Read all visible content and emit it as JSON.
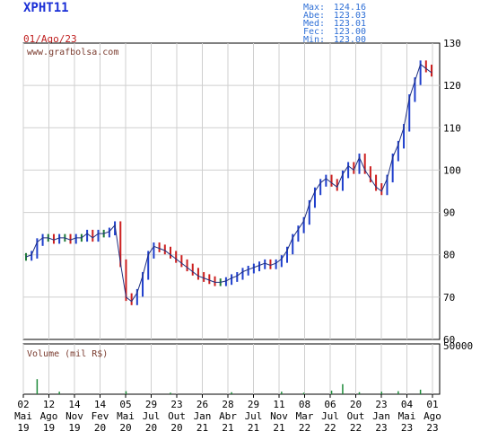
{
  "ticker": "XPHT11",
  "date": "01/Ago/23",
  "watermark": "www.grafbolsa.com",
  "stats": [
    {
      "label": "Max:",
      "value": "124.16"
    },
    {
      "label": "Abe:",
      "value": "123.03"
    },
    {
      "label": "Med:",
      "value": "123.01"
    },
    {
      "label": "Fec:",
      "value": "123.00"
    },
    {
      "label": "Min:",
      "value": "123.00"
    }
  ],
  "colors": {
    "up": "#1f3fcc",
    "down": "#cc1f1f",
    "neutral": "#1f7a3a",
    "grid": "#cfcfcf",
    "volume": "#1f8a3a"
  },
  "chart_data": {
    "type": "line",
    "ylim": [
      60,
      130
    ],
    "y_ticks": [
      60,
      70,
      80,
      90,
      100,
      110,
      120,
      130
    ],
    "volume_label": "Volume (mil R$)",
    "volume_ticks": [
      "50000"
    ],
    "volume_ylim": [
      0,
      50000
    ],
    "x_ticks": [
      {
        "day": "02",
        "month": "Mai",
        "year": "19"
      },
      {
        "day": "12",
        "month": "Ago",
        "year": "19"
      },
      {
        "day": "14",
        "month": "Nov",
        "year": "19"
      },
      {
        "day": "14",
        "month": "Fev",
        "year": "20"
      },
      {
        "day": "05",
        "month": "Mai",
        "year": "20"
      },
      {
        "day": "29",
        "month": "Jul",
        "year": "20"
      },
      {
        "day": "23",
        "month": "Out",
        "year": "20"
      },
      {
        "day": "26",
        "month": "Jan",
        "year": "21"
      },
      {
        "day": "28",
        "month": "Abr",
        "year": "21"
      },
      {
        "day": "29",
        "month": "Jul",
        "year": "21"
      },
      {
        "day": "11",
        "month": "Nov",
        "year": "21"
      },
      {
        "day": "08",
        "month": "Mar",
        "year": "22"
      },
      {
        "day": "06",
        "month": "Jul",
        "year": "22"
      },
      {
        "day": "20",
        "month": "Out",
        "year": "22"
      },
      {
        "day": "23",
        "month": "Jan",
        "year": "23"
      },
      {
        "day": "04",
        "month": "Mai",
        "year": "23"
      },
      {
        "day": "01",
        "month": "Ago",
        "year": "23"
      }
    ],
    "series": [
      {
        "values": [
          79.5,
          80,
          83,
          84,
          84,
          83.5,
          84,
          84,
          83.5,
          84,
          84,
          85,
          84,
          85,
          85,
          85.5,
          87,
          78,
          70,
          69,
          71,
          75,
          80,
          82,
          81.5,
          81,
          80,
          79,
          78,
          77,
          76,
          75,
          74.5,
          74,
          73.5,
          73.5,
          73.8,
          74.5,
          75,
          76,
          76.5,
          77,
          77.5,
          78,
          77.5,
          78,
          79,
          81,
          84,
          86,
          88,
          92,
          95,
          97,
          98,
          97,
          96,
          99,
          101,
          100,
          103,
          100,
          98,
          96,
          95,
          98,
          103,
          106,
          110,
          117,
          121,
          125,
          124,
          123
        ]
      }
    ],
    "volume": [
      {
        "i": 2,
        "v": 15000
      },
      {
        "i": 6,
        "v": 2500
      },
      {
        "i": 18,
        "v": 3000
      },
      {
        "i": 26,
        "v": 1500
      },
      {
        "i": 37,
        "v": 2000
      },
      {
        "i": 46,
        "v": 2500
      },
      {
        "i": 50,
        "v": 1500
      },
      {
        "i": 55,
        "v": 3500
      },
      {
        "i": 57,
        "v": 10000
      },
      {
        "i": 60,
        "v": 2000
      },
      {
        "i": 64,
        "v": 2500
      },
      {
        "i": 67,
        "v": 3000
      },
      {
        "i": 71,
        "v": 4500
      }
    ]
  }
}
